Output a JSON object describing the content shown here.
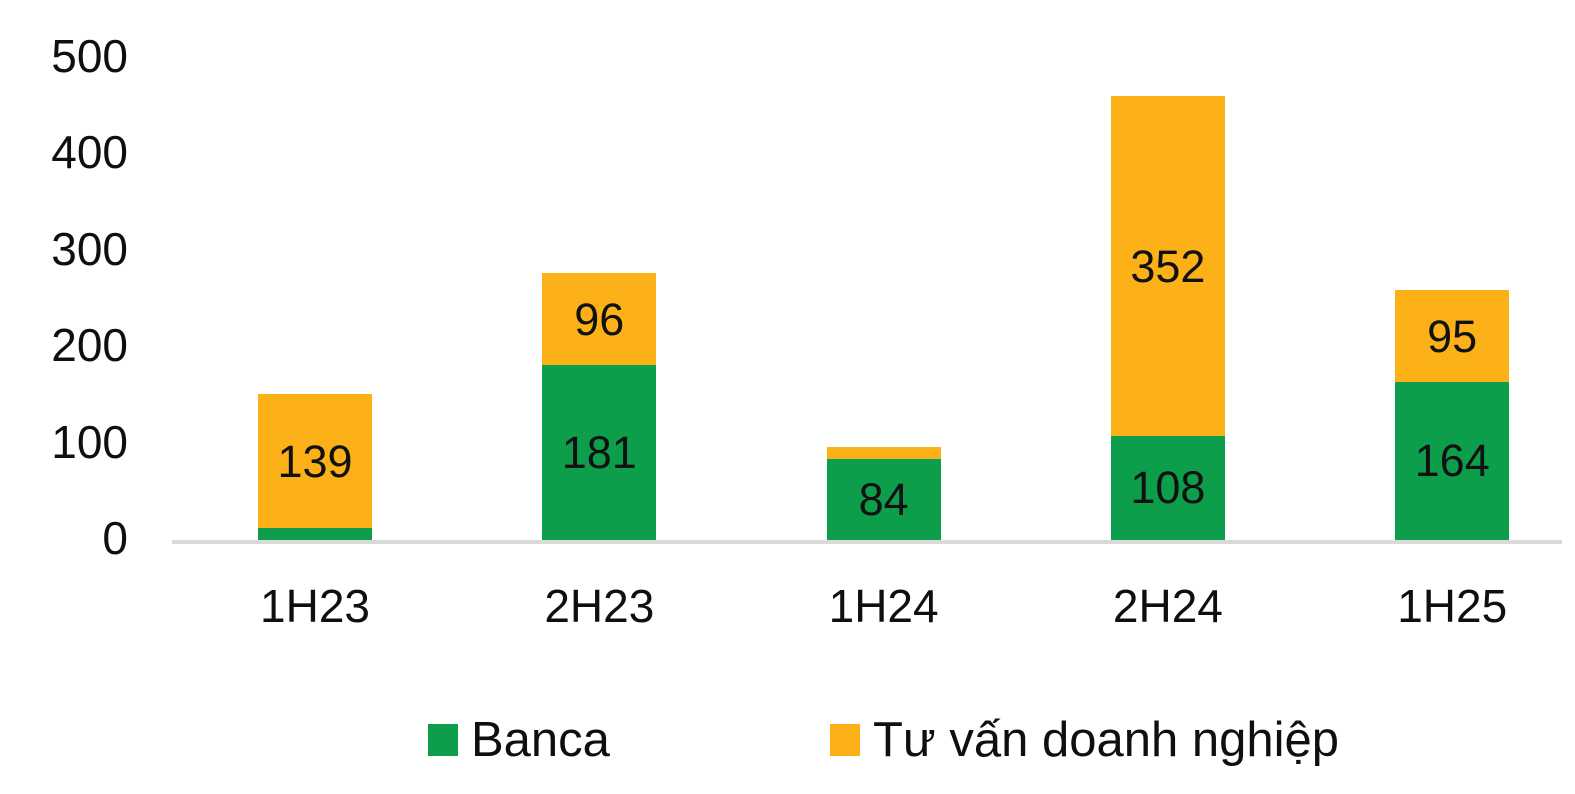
{
  "chart_data": {
    "type": "bar",
    "stacked": true,
    "title": "",
    "categories": [
      "1H23",
      "2H23",
      "1H24",
      "2H24",
      "1H25"
    ],
    "series": [
      {
        "name": "Banca",
        "color": "#0D9E4C",
        "values": [
          12,
          181,
          84,
          108,
          164
        ],
        "labeled": [
          false,
          true,
          true,
          true,
          true
        ]
      },
      {
        "name": "Tư vấn doanh nghiệp",
        "color": "#FBB117",
        "values": [
          139,
          96,
          12,
          352,
          95
        ],
        "labeled": [
          true,
          true,
          false,
          true,
          true
        ]
      }
    ],
    "ylim": [
      0,
      500
    ],
    "yticks": [
      0,
      100,
      200,
      300,
      400,
      500
    ],
    "grid": false,
    "legend_position": "bottom",
    "axis_line_color": "#D9D9D9",
    "text_color": "#0F0F0F",
    "background_color": "#FFFFFF"
  }
}
